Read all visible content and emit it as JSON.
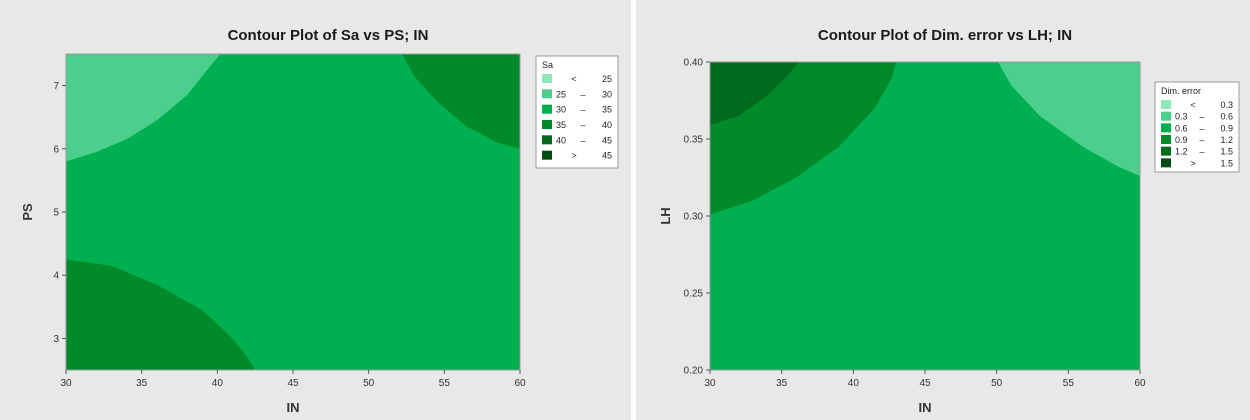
{
  "chart_data": [
    {
      "type": "contour",
      "title": "Contour Plot of Sa vs PS; IN",
      "xlabel": "IN",
      "ylabel": "PS",
      "xlim": [
        30,
        60
      ],
      "ylim": [
        2.5,
        7.5
      ],
      "x_ticks": [
        30,
        35,
        40,
        45,
        50,
        55,
        60
      ],
      "y_ticks": [
        3,
        4,
        5,
        6,
        7
      ],
      "x_tick_labels": [
        "30",
        "35",
        "40",
        "45",
        "50",
        "55",
        "60"
      ],
      "y_tick_labels": [
        "3",
        "4",
        "5",
        "6",
        "7"
      ],
      "legend": {
        "title": "Sa",
        "placement": "right",
        "entries": [
          {
            "op": "<",
            "lo": "",
            "hi": "25",
            "color": "#8ee8b8"
          },
          {
            "op": "",
            "lo": "25",
            "hi": "30",
            "color": "#4ccf8c"
          },
          {
            "op": "",
            "lo": "30",
            "hi": "35",
            "color": "#00b050"
          },
          {
            "op": "",
            "lo": "35",
            "hi": "40",
            "color": "#008a2a"
          },
          {
            "op": "",
            "lo": "40",
            "hi": "45",
            "color": "#006b1c"
          },
          {
            "op": ">",
            "lo": "",
            "hi": "45",
            "color": "#004d12"
          }
        ]
      },
      "background_color": "#00b050",
      "regions": [
        {
          "color": "#4ccf8c",
          "corner": "top-left",
          "points": [
            [
              30,
              5.8
            ],
            [
              32,
              5.95
            ],
            [
              34,
              6.15
            ],
            [
              36,
              6.45
            ],
            [
              38,
              6.85
            ],
            [
              39.5,
              7.3
            ],
            [
              40.2,
              7.5
            ],
            [
              30,
              7.5
            ]
          ]
        },
        {
          "color": "#008a2a",
          "corner": "top-right",
          "points": [
            [
              52.2,
              7.5
            ],
            [
              53,
              7.15
            ],
            [
              54.5,
              6.75
            ],
            [
              56.5,
              6.35
            ],
            [
              58.5,
              6.1
            ],
            [
              60,
              6.0
            ],
            [
              60,
              7.5
            ]
          ]
        },
        {
          "color": "#008a2a",
          "corner": "bottom-left",
          "points": [
            [
              30,
              4.25
            ],
            [
              33,
              4.15
            ],
            [
              36,
              3.85
            ],
            [
              39,
              3.45
            ],
            [
              41,
              3.0
            ],
            [
              42,
              2.7
            ],
            [
              42.5,
              2.5
            ],
            [
              30,
              2.5
            ]
          ]
        }
      ]
    },
    {
      "type": "contour",
      "title": "Contour Plot of Dim. error vs LH; IN",
      "xlabel": "IN",
      "ylabel": "LH",
      "xlim": [
        30,
        60
      ],
      "ylim": [
        0.2,
        0.4
      ],
      "x_ticks": [
        30,
        35,
        40,
        45,
        50,
        55,
        60
      ],
      "y_ticks": [
        0.2,
        0.25,
        0.3,
        0.35,
        0.4
      ],
      "x_tick_labels": [
        "30",
        "35",
        "40",
        "45",
        "50",
        "55",
        "60"
      ],
      "y_tick_labels": [
        "0.20",
        "0.25",
        "0.30",
        "0.35",
        "0.40"
      ],
      "legend": {
        "title": "Dim. error",
        "placement": "right",
        "entries": [
          {
            "op": "<",
            "lo": "",
            "hi": "0.3",
            "color": "#8ee8b8"
          },
          {
            "op": "",
            "lo": "0.3",
            "hi": "0.6",
            "color": "#4ccf8c"
          },
          {
            "op": "",
            "lo": "0.6",
            "hi": "0.9",
            "color": "#00b050"
          },
          {
            "op": "",
            "lo": "0.9",
            "hi": "1.2",
            "color": "#008a2a"
          },
          {
            "op": "",
            "lo": "1.2",
            "hi": "1.5",
            "color": "#006b1c"
          },
          {
            "op": ">",
            "lo": "",
            "hi": "1.5",
            "color": "#004d12"
          }
        ]
      },
      "background_color": "#00b050",
      "regions": [
        {
          "color": "#008a2a",
          "corner": "top-left",
          "points": [
            [
              30,
              0.301
            ],
            [
              33,
              0.31
            ],
            [
              36,
              0.325
            ],
            [
              39,
              0.345
            ],
            [
              41.5,
              0.37
            ],
            [
              42.7,
              0.39
            ],
            [
              43,
              0.4
            ],
            [
              30,
              0.4
            ]
          ]
        },
        {
          "color": "#006b1c",
          "corner": "top-left",
          "points": [
            [
              30,
              0.359
            ],
            [
              32,
              0.365
            ],
            [
              34,
              0.378
            ],
            [
              35.5,
              0.392
            ],
            [
              36.2,
              0.4
            ],
            [
              30,
              0.4
            ]
          ]
        },
        {
          "color": "#4ccf8c",
          "corner": "top-right",
          "points": [
            [
              50.1,
              0.4
            ],
            [
              51,
              0.385
            ],
            [
              53,
              0.365
            ],
            [
              56,
              0.345
            ],
            [
              58.5,
              0.332
            ],
            [
              60,
              0.326
            ],
            [
              60,
              0.4
            ]
          ]
        }
      ]
    }
  ]
}
